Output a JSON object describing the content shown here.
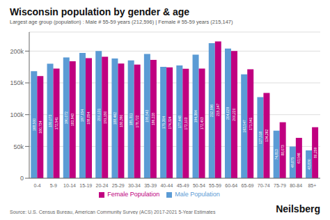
{
  "chart_data": {
    "type": "bar",
    "title": "Wisconsin population by gender & age",
    "subtitle": "Largest age group (population) : Male # 55-59 years (212,596) | Female # 55-59 years (215,147)",
    "annotations": [
      "Source: U.S. Census Bureau, American Community Survey (ACS) 2017-2021 5-Year Estimates",
      "Neilsberg"
    ],
    "categories": [
      "0-4",
      "5-9",
      "10-14",
      "15-19",
      "20-24",
      "25-29",
      "30-34",
      "35-39",
      "40-44",
      "45-49",
      "50-54",
      "55-59",
      "60-64",
      "65-69",
      "70-74",
      "75-79",
      "80-84",
      "85+"
    ],
    "series": [
      {
        "name": "Male Population",
        "color": "#5b9bd5",
        "values": [
          168500,
          180073,
          190072,
          197054,
          200131,
          188462,
          185311,
          195543,
          175304,
          177448,
          194364,
          212596,
          204029,
          163547,
          127518,
          74813,
          49875,
          43830
        ],
        "value_labels": [
          "168,500",
          "180,073",
          "190,072",
          "197,054",
          "200,131",
          "188,462",
          "185,311",
          "195,543",
          "175,304",
          "177,448",
          "194,364",
          "212,596",
          "204,029",
          "163,547",
          "127,518",
          "74,813",
          "49,875",
          "43,830"
        ]
      },
      {
        "name": "Female Population",
        "color": "#c00080",
        "values": [
          160734,
          172541,
          183943,
          188854,
          191150,
          180390,
          178722,
          186228,
          174324,
          172103,
          172453,
          215147,
          200220,
          171541,
          134262,
          88073,
          63546,
          80259
        ],
        "value_labels": [
          "160,734",
          "172,541",
          "183,943",
          "188,854",
          "191,150",
          "180,390",
          "178,722",
          "186,228",
          "174,324",
          "172,103",
          "172,453",
          "215,147",
          "200,220",
          "171,541",
          "134,262",
          "88,073",
          "63,546",
          "80,259"
        ]
      }
    ],
    "ylim": [
      0,
      230000
    ],
    "yticks": [
      0,
      {
        "value": 50000,
        "label": "50k"
      },
      {
        "value": 100000,
        "label": "100k"
      },
      {
        "value": 150000,
        "label": "150k"
      },
      {
        "value": 200000,
        "label": "200k"
      }
    ],
    "grid": true,
    "data_labels": true,
    "legend": "bottom"
  }
}
